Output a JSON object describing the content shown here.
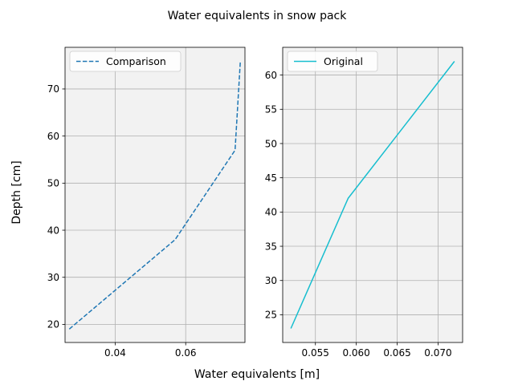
{
  "figure": {
    "suptitle": "Water equivalents in snow pack",
    "supxlabel": "Water equivalents [m]",
    "supylabel": "Depth [cm]",
    "plot_background": "#f2f2f2",
    "grid_color": "#b0b0b0"
  },
  "chart_data": [
    {
      "type": "line",
      "panel": "left",
      "title": "",
      "xlabel": "",
      "ylabel": "",
      "xlim": [
        0.0258,
        0.0768
      ],
      "ylim": [
        16.15,
        78.85
      ],
      "xticks": [
        0.04,
        0.06
      ],
      "xtick_labels": [
        "0.04",
        "0.06"
      ],
      "yticks": [
        20,
        30,
        40,
        50,
        60,
        70
      ],
      "ytick_labels": [
        "20",
        "30",
        "40",
        "50",
        "60",
        "70"
      ],
      "grid": true,
      "legend_position": "upper-left",
      "series": [
        {
          "name": "Comparison",
          "color": "#1f77b4",
          "linestyle": "dashed",
          "x": [
            0.027,
            0.057,
            0.074,
            0.0755
          ],
          "y": [
            19,
            38,
            57,
            76
          ]
        }
      ]
    },
    {
      "type": "line",
      "panel": "right",
      "title": "",
      "xlabel": "",
      "ylabel": "",
      "xlim": [
        0.051,
        0.073
      ],
      "ylim": [
        20.95,
        64.05
      ],
      "xticks": [
        0.055,
        0.06,
        0.065,
        0.07
      ],
      "xtick_labels": [
        "0.055",
        "0.060",
        "0.065",
        "0.070"
      ],
      "yticks": [
        25,
        30,
        35,
        40,
        45,
        50,
        55,
        60
      ],
      "ytick_labels": [
        "25",
        "30",
        "35",
        "40",
        "45",
        "50",
        "55",
        "60"
      ],
      "grid": true,
      "legend_position": "upper-left",
      "series": [
        {
          "name": "Original",
          "color": "#17becf",
          "linestyle": "solid",
          "x": [
            0.052,
            0.059,
            0.072
          ],
          "y": [
            23,
            42,
            62
          ]
        }
      ]
    }
  ]
}
